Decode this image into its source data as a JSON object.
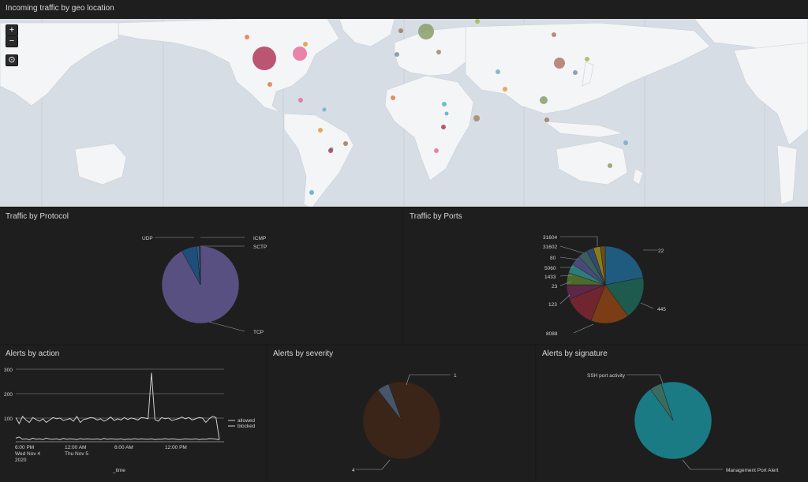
{
  "map": {
    "title": "Incoming traffic by geo location",
    "zoom_in": "+",
    "zoom_out": "−",
    "reset": "⊙",
    "markers": [
      {
        "color": "#b03a5b"
      },
      {
        "color": "#e76f9c"
      },
      {
        "color": "#e17a4f"
      },
      {
        "color": "#e39a3d"
      },
      {
        "color": "#6fb0c4"
      },
      {
        "color": "#8a9e6b"
      },
      {
        "color": "#a0785c"
      },
      {
        "color": "#9fbc4d"
      },
      {
        "color": "#b0756a"
      },
      {
        "color": "#7b8fa5"
      },
      {
        "color": "#9e8a6b"
      },
      {
        "color": "#57b7b0"
      },
      {
        "color": "#57a9e0"
      }
    ]
  },
  "protocol": {
    "title": "Traffic by Protocol",
    "slices": [
      {
        "label": "TCP",
        "value": 92,
        "color": "#585081"
      },
      {
        "label": "UDP",
        "value": 6.5,
        "color": "#1e4f7a"
      },
      {
        "label": "ICMP",
        "value": 1,
        "color": "#2f5f92"
      },
      {
        "label": "SCTP",
        "value": 0.5,
        "color": "#3e3a63"
      }
    ]
  },
  "ports": {
    "title": "Traffic by Ports",
    "slices": [
      {
        "label": "22",
        "value": 22,
        "color": "#1f5b7e"
      },
      {
        "label": "445",
        "value": 18,
        "color": "#1e5a4e"
      },
      {
        "label": "8088",
        "value": 16,
        "color": "#7b3d16"
      },
      {
        "label": "123",
        "value": 13,
        "color": "#702530"
      },
      {
        "label": "23",
        "value": 6,
        "color": "#5d2848"
      },
      {
        "label": "1433",
        "value": 5,
        "color": "#4c6b2a"
      },
      {
        "label": "5060",
        "value": 4,
        "color": "#2f7a7a"
      },
      {
        "label": "80",
        "value": 4,
        "color": "#4a4a7a"
      },
      {
        "label": "31602",
        "value": 4,
        "color": "#3a5f5f"
      },
      {
        "label": "31604",
        "value": 3,
        "color": "#2f4a6e"
      },
      {
        "label": "",
        "value": 3,
        "color": "#8a7a1a"
      },
      {
        "label": "",
        "value": 2,
        "color": "#6b4d1e"
      }
    ]
  },
  "action": {
    "title": "Alerts by action",
    "x_label": "_time",
    "legend": [
      "allowed",
      "blocked"
    ],
    "y_ticks": [
      "300",
      "200",
      "100"
    ],
    "x_ticks": [
      {
        "l1": "6:00 PM",
        "l2": "Wed Nov 4",
        "l3": "2020"
      },
      {
        "l1": "12:00 AM",
        "l2": "Thu Nov 5",
        "l3": ""
      },
      {
        "l1": "6:00 AM",
        "l2": "",
        "l3": ""
      },
      {
        "l1": "12:00 PM",
        "l2": "",
        "l3": ""
      }
    ],
    "ylim": [
      0,
      300
    ],
    "allowed": [
      100,
      75,
      105,
      90,
      80,
      100,
      92,
      85,
      95,
      80,
      90,
      100,
      95,
      98,
      88,
      92,
      96,
      85,
      105,
      80,
      92,
      95,
      100,
      98,
      90,
      95,
      85,
      92,
      102,
      88,
      95,
      90,
      100,
      92,
      98,
      95,
      90,
      100,
      98,
      95,
      285,
      92,
      85,
      100,
      95,
      98,
      88,
      92,
      96,
      102,
      95,
      100,
      90,
      95,
      100,
      98,
      80,
      95,
      105,
      100,
      10
    ],
    "blocked": [
      15,
      20,
      10,
      12,
      8,
      15,
      10,
      12,
      9,
      15,
      11,
      10,
      12,
      8,
      14,
      10,
      12,
      11,
      9,
      13,
      10,
      12,
      11,
      10,
      12,
      9,
      14,
      10,
      12,
      11,
      10,
      12,
      9,
      11,
      10,
      13,
      10,
      12,
      11,
      10,
      12,
      9,
      11,
      10,
      13,
      10,
      12,
      11,
      9,
      10,
      12,
      11,
      10,
      12,
      9,
      11,
      10,
      13,
      12,
      11,
      8
    ]
  },
  "severity": {
    "title": "Alerts by severity",
    "slices": [
      {
        "label": "4",
        "value": 95,
        "color": "#3b2418"
      },
      {
        "label": "1",
        "value": 5,
        "color": "#46566b"
      }
    ]
  },
  "signature": {
    "title": "Alerts by signature",
    "slices": [
      {
        "label": "Management Port Alert",
        "value": 95,
        "color": "#1a7b85"
      },
      {
        "label": "SSH port activity",
        "value": 5,
        "color": "#3b6b5e"
      }
    ]
  }
}
